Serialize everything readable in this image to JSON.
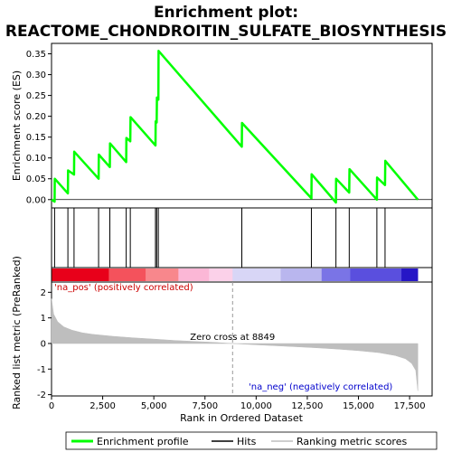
{
  "chart_data": {
    "type": "line",
    "title_line1": "Enrichment plot:",
    "title_line2": "REACTOME_CHONDROITIN_SULFATE_BIOSYNTHESIS",
    "es_panel": {
      "ylabel": "Enrichment score (ES)",
      "ylim": [
        -0.02,
        0.375
      ],
      "yticks": [
        "0.00",
        "0.05",
        "0.10",
        "0.15",
        "0.20",
        "0.25",
        "0.30",
        "0.35"
      ],
      "ytick_values": [
        0,
        0.05,
        0.1,
        0.15,
        0.2,
        0.25,
        0.3,
        0.35
      ],
      "series": [
        {
          "name": "Enrichment profile",
          "color": "#00ff00",
          "x": [
            0,
            150,
            160,
            800,
            810,
            1100,
            1110,
            2300,
            2310,
            2850,
            2860,
            3650,
            3660,
            3850,
            3860,
            5080,
            5090,
            5140,
            5150,
            5220,
            5230,
            9300,
            9310,
            12700,
            12710,
            13900,
            13910,
            14550,
            14560,
            15900,
            15910,
            16300,
            16310,
            17900
          ],
          "y": [
            0,
            -0.005,
            0.05,
            0.015,
            0.07,
            0.06,
            0.115,
            0.05,
            0.108,
            0.078,
            0.135,
            0.09,
            0.148,
            0.14,
            0.198,
            0.13,
            0.188,
            0.185,
            0.245,
            0.24,
            0.357,
            0.127,
            0.184,
            0.003,
            0.061,
            -0.007,
            0.05,
            0.017,
            0.073,
            0.0,
            0.053,
            0.035,
            0.093,
            0.0
          ]
        }
      ]
    },
    "hits": [
      150,
      800,
      1100,
      2300,
      2850,
      3650,
      3850,
      5080,
      5140,
      5220,
      9300,
      12700,
      13900,
      14550,
      15900,
      16300
    ],
    "color_bar": {
      "stops": [
        "#e8001a",
        "#f4525c",
        "#f8878c",
        "#fbb7d6",
        "#fbd1e9",
        "#d8d6f6",
        "#b9b6ee",
        "#7a74e6",
        "#5a4fde",
        "#2616c6"
      ],
      "bounds": [
        0,
        2800,
        4600,
        6200,
        7700,
        8849,
        11200,
        13200,
        14600,
        17100,
        17900
      ]
    },
    "metric_panel": {
      "ylabel": "Ranked list metric (PreRanked)",
      "ylim": [
        -2.05,
        2.4
      ],
      "yticks": [
        "-2",
        "-1",
        "0",
        "1",
        "2"
      ],
      "ytick_values": [
        -2,
        -1,
        0,
        1,
        2
      ],
      "xlabel": "Rank in Ordered Dataset",
      "xlim": [
        0,
        18600
      ],
      "xticks": [
        "0",
        "2,500",
        "5,000",
        "7,500",
        "10,000",
        "12,500",
        "15,000",
        "17,500"
      ],
      "xtick_values": [
        0,
        2500,
        5000,
        7500,
        10000,
        12500,
        15000,
        17500
      ],
      "zero_cross": 8849,
      "zero_cross_label": "Zero cross at 8849",
      "pos_label": "'na_pos' (positively correlated)",
      "neg_label": "'na_neg' (negatively correlated)",
      "pos_color": "#cc0000",
      "neg_color": "#0000cc",
      "fill_color": "#bebebe",
      "metric_x": [
        0,
        100,
        300,
        600,
        1000,
        1500,
        2000,
        3000,
        4000,
        5000,
        6000,
        7000,
        8000,
        8849,
        10000,
        11000,
        12000,
        13000,
        14000,
        15000,
        16000,
        16800,
        17300,
        17600,
        17800,
        17900
      ],
      "metric_y": [
        1.75,
        1.15,
        0.85,
        0.65,
        0.52,
        0.42,
        0.36,
        0.28,
        0.22,
        0.17,
        0.12,
        0.08,
        0.04,
        0.0,
        -0.05,
        -0.09,
        -0.13,
        -0.17,
        -0.22,
        -0.28,
        -0.36,
        -0.47,
        -0.6,
        -0.78,
        -1.05,
        -1.85
      ]
    },
    "legend": [
      {
        "label": "Enrichment profile",
        "color": "#00ff00",
        "kind": "line"
      },
      {
        "label": "Hits",
        "color": "#000000",
        "kind": "line"
      },
      {
        "label": "Ranking metric scores",
        "color": "#bebebe",
        "kind": "line"
      }
    ]
  }
}
